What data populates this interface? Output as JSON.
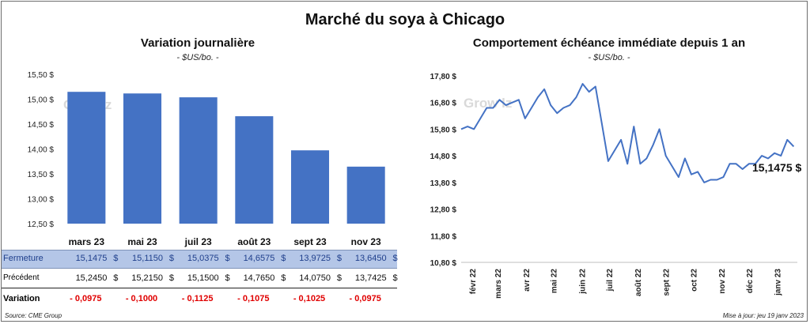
{
  "title": "Marché du soya à Chicago",
  "left_chart": {
    "title": "Variation journalière",
    "subtitle": "- $US/bo. -",
    "y_ticks": [
      "15,50 $",
      "15,00 $",
      "14,50 $",
      "14,00 $",
      "13,50 $",
      "13,00 $",
      "12,50 $"
    ]
  },
  "right_chart": {
    "title": "Comportement échéance immédiate depuis 1 an",
    "subtitle": "- $US/bo. -",
    "y_ticks": [
      "17,80 $",
      "16,80 $",
      "15,80 $",
      "14,80 $",
      "13,80 $",
      "12,80 $",
      "11,80 $",
      "10,80 $"
    ],
    "x_ticks": [
      "févr 22",
      "mars 22",
      "avr 22",
      "mai 22",
      "juin 22",
      "juil 22",
      "août 22",
      "sept 22",
      "oct 22",
      "nov 22",
      "déc 22",
      "janv 23"
    ],
    "last_value_label": "15,1475 $"
  },
  "table": {
    "row_labels": {
      "fermeture": "Fermeture",
      "precedent": "Précédent",
      "variation": "Variation"
    },
    "currency": "$",
    "fermeture": [
      "15,1475",
      "15,1150",
      "15,0375",
      "14,6575",
      "13,9725",
      "13,6450"
    ],
    "precedent": [
      "15,2450",
      "15,2150",
      "15,1500",
      "14,7650",
      "14,0750",
      "13,7425"
    ],
    "variation": [
      "- 0,0975",
      "- 0,1000",
      "- 0,1125",
      "- 0,1075",
      "- 0,1025",
      "- 0,0975"
    ]
  },
  "footer": {
    "source": "Source: CME Group",
    "updated": "Mise à jour: jeu 19 janv 2023"
  },
  "watermark": "Grow lz",
  "colors": {
    "bar": "#4472c4",
    "line": "#4472c4",
    "fermeture_row_bg": "#b4c6e7",
    "fermeture_text": "#1f3f8c",
    "variation_text": "#e00000"
  },
  "chart_data": [
    {
      "type": "bar",
      "title": "Variation journalière",
      "categories": [
        "mars 23",
        "mai 23",
        "juil 23",
        "août 23",
        "sept 23",
        "nov 23"
      ],
      "values": [
        15.1475,
        15.115,
        15.0375,
        14.6575,
        13.9725,
        13.645
      ],
      "ylabel": "$US/bo.",
      "ylim": [
        12.5,
        15.5
      ],
      "grid": false
    },
    {
      "type": "line",
      "title": "Comportement échéance immédiate depuis 1 an",
      "ylabel": "$US/bo.",
      "ylim": [
        10.8,
        17.8
      ],
      "grid": false,
      "x": [
        "2022-01-20",
        "2022-01-27",
        "2022-02-03",
        "2022-02-10",
        "2022-02-17",
        "2022-02-24",
        "2022-03-03",
        "2022-03-10",
        "2022-03-17",
        "2022-03-24",
        "2022-03-31",
        "2022-04-07",
        "2022-04-14",
        "2022-04-21",
        "2022-04-28",
        "2022-05-05",
        "2022-05-12",
        "2022-05-19",
        "2022-05-26",
        "2022-06-02",
        "2022-06-09",
        "2022-06-16",
        "2022-06-23",
        "2022-06-30",
        "2022-07-07",
        "2022-07-14",
        "2022-07-21",
        "2022-07-28",
        "2022-08-04",
        "2022-08-11",
        "2022-08-18",
        "2022-08-25",
        "2022-09-01",
        "2022-09-08",
        "2022-09-15",
        "2022-09-22",
        "2022-09-29",
        "2022-10-06",
        "2022-10-13",
        "2022-10-20",
        "2022-10-27",
        "2022-11-03",
        "2022-11-10",
        "2022-11-17",
        "2022-11-24",
        "2022-12-01",
        "2022-12-08",
        "2022-12-15",
        "2022-12-22",
        "2022-12-29",
        "2023-01-05",
        "2023-01-12",
        "2023-01-19"
      ],
      "series": [
        {
          "values": [
            15.8,
            15.9,
            15.8,
            16.2,
            16.6,
            16.6,
            16.9,
            16.7,
            16.8,
            16.9,
            16.2,
            16.6,
            17.0,
            17.3,
            16.7,
            16.4,
            16.6,
            16.7,
            17.0,
            17.5,
            17.2,
            17.4,
            16.0,
            14.6,
            15.0,
            15.4,
            14.5,
            15.9,
            14.5,
            14.7,
            15.2,
            15.8,
            14.8,
            14.4,
            14.0,
            14.7,
            14.1,
            14.2,
            13.8,
            13.9,
            13.9,
            14.0,
            14.5,
            14.5,
            14.3,
            14.5,
            14.5,
            14.8,
            14.7,
            14.9,
            14.8,
            15.4,
            15.1475
          ]
        }
      ]
    }
  ]
}
